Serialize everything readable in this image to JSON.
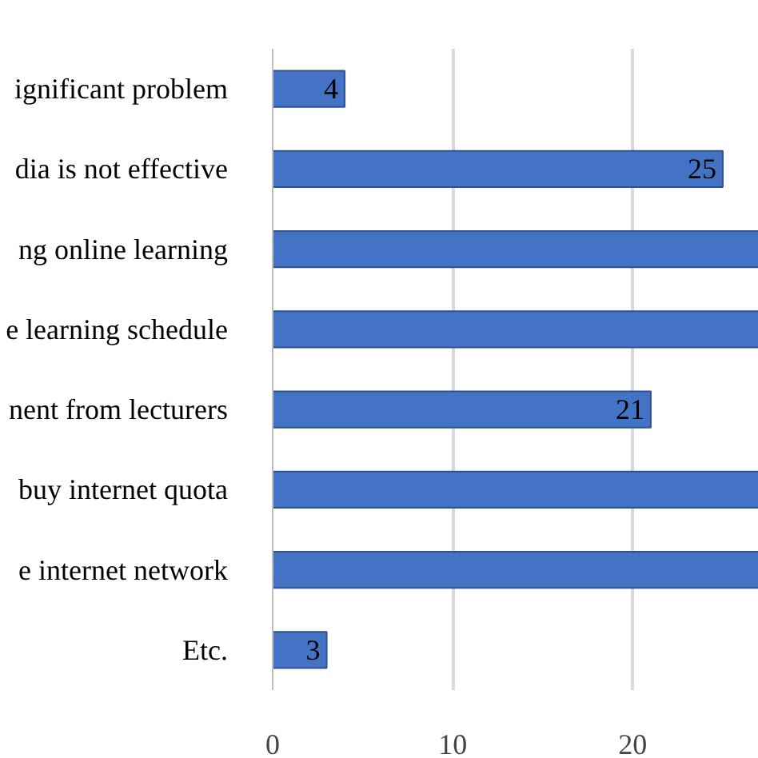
{
  "chart_data": {
    "type": "bar",
    "orientation": "horizontal",
    "categories": [
      "ignificant problem",
      "dia is not effective",
      "ng online learning",
      "e learning schedule",
      "nent from lecturers",
      "buy internet quota",
      "e internet network",
      "Etc."
    ],
    "values": [
      4,
      25,
      27,
      27,
      21,
      27,
      27,
      3
    ],
    "value_labels": [
      "4",
      "25",
      null,
      null,
      "21",
      null,
      null,
      "3"
    ],
    "color": "#4472c4",
    "xlim": [
      0,
      27
    ],
    "xticks": [
      0,
      10,
      20
    ],
    "grid": "x"
  }
}
